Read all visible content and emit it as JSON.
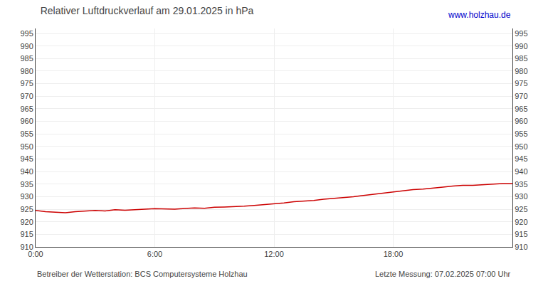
{
  "chart_data": {
    "type": "line",
    "title": "Relativer Luftdruckverlauf am 29.01.2025 in hPa",
    "annotations": [
      "www.holzhau.de",
      "Betreiber der Wetterstation: BCS Computersysteme Holzhau",
      "Letzte Messung: 07.02.2025 07:00 Uhr"
    ],
    "x": [
      0,
      30,
      60,
      90,
      120,
      150,
      180,
      210,
      240,
      270,
      300,
      330,
      360,
      390,
      420,
      450,
      480,
      510,
      540,
      570,
      600,
      630,
      660,
      690,
      720,
      750,
      780,
      810,
      840,
      870,
      900,
      930,
      960,
      990,
      1020,
      1050,
      1080,
      1110,
      1140,
      1170,
      1200,
      1230,
      1260,
      1290,
      1320,
      1350,
      1380,
      1410,
      1440
    ],
    "values": [
      924.5,
      924.0,
      923.8,
      923.6,
      924.0,
      924.2,
      924.5,
      924.3,
      924.8,
      924.6,
      924.9,
      925.0,
      925.2,
      925.1,
      925.0,
      925.3,
      925.5,
      925.4,
      925.8,
      925.9,
      926.0,
      926.2,
      926.5,
      926.8,
      927.0,
      927.5,
      928.0,
      928.2,
      928.5,
      929.0,
      929.3,
      929.5,
      930.0,
      930.5,
      931.0,
      931.5,
      932.0,
      932.3,
      932.8,
      933.0,
      933.5,
      933.8,
      934.2,
      934.5,
      934.5,
      934.8,
      935.0,
      935.2,
      935.2
    ],
    "color": "#cc0000",
    "xlim": [
      0,
      1440
    ],
    "xticks": [
      {
        "value": 0,
        "label": "0:00"
      },
      {
        "value": 360,
        "label": "6:00"
      },
      {
        "value": 720,
        "label": "12:00"
      },
      {
        "value": 1080,
        "label": "18:00"
      }
    ],
    "ylim": [
      910,
      997
    ],
    "yticks": [
      910,
      915,
      920,
      925,
      930,
      935,
      940,
      945,
      950,
      955,
      960,
      965,
      970,
      975,
      980,
      985,
      990,
      995
    ],
    "y2lim": [
      910,
      997
    ],
    "y2ticks": [
      910,
      915,
      920,
      925,
      930,
      935,
      940,
      945,
      950,
      955,
      960,
      965,
      970,
      975,
      980,
      985,
      990,
      995
    ],
    "grid": true
  }
}
